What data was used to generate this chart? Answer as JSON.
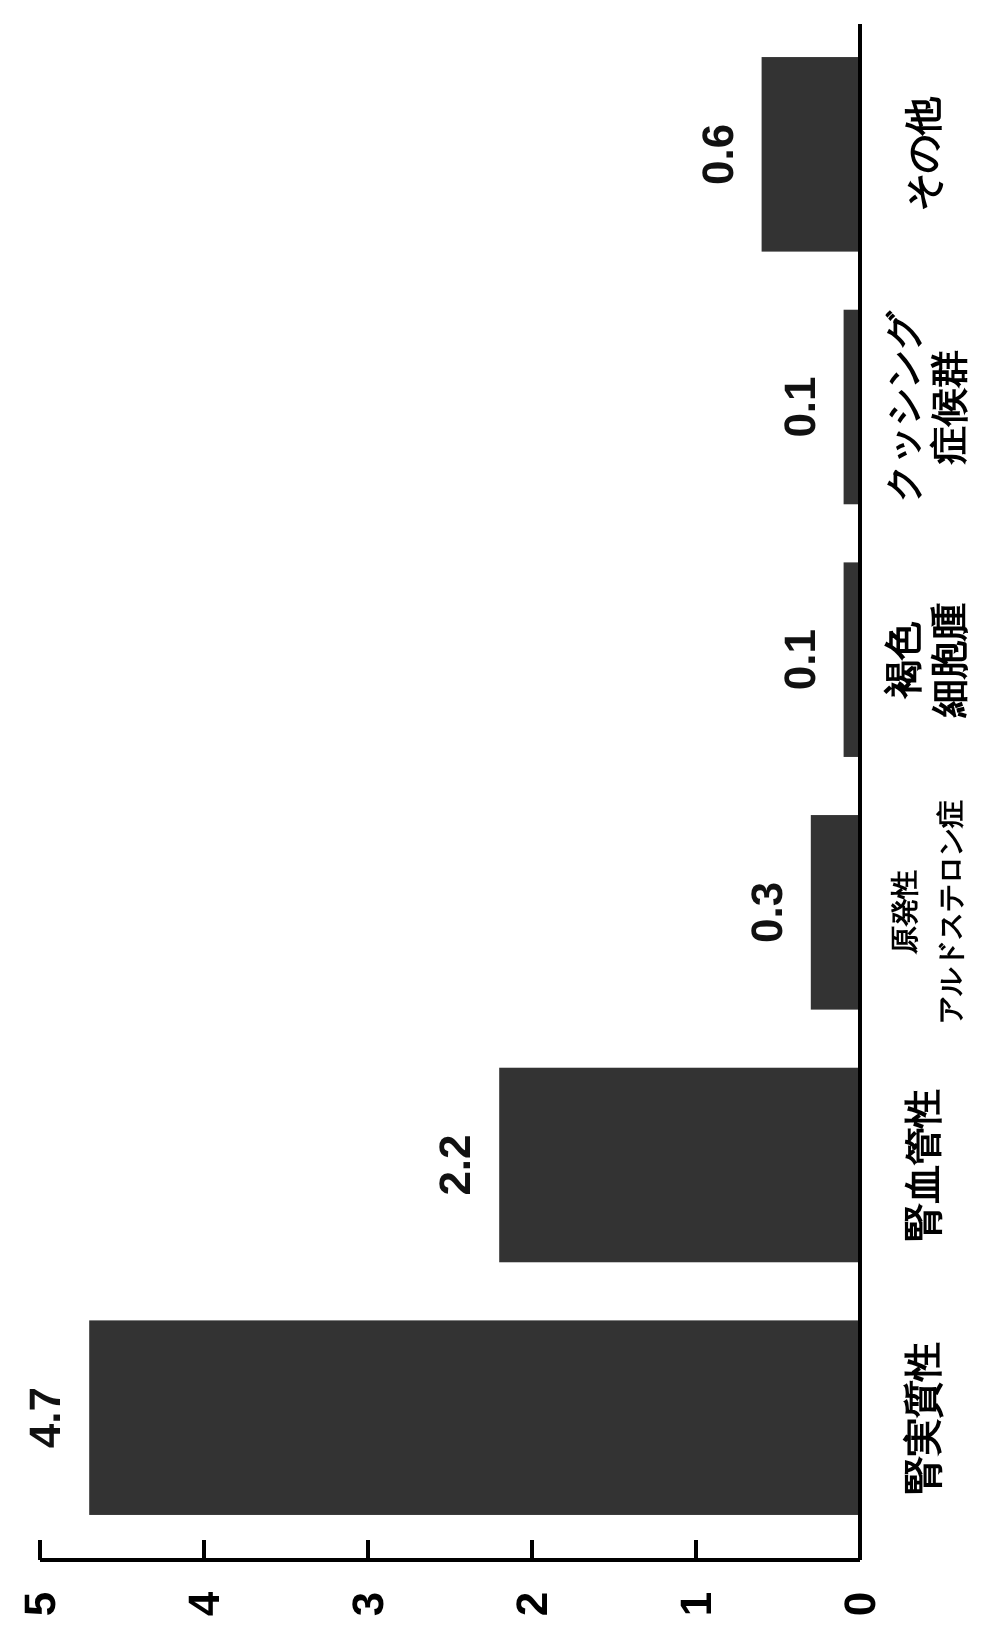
{
  "chart_data": {
    "type": "bar",
    "orientation": "horizontal",
    "categories": [
      "その他",
      "クッシング症候群",
      "褐色細胞腫",
      "原発性アルドステロン症",
      "腎血管性",
      "腎実質性"
    ],
    "values": [
      0.6,
      0.1,
      0.1,
      0.3,
      2.2,
      4.7
    ],
    "color": "#333333",
    "xlim": [
      5,
      0
    ],
    "xticks": [
      5,
      4,
      3,
      2,
      1,
      0
    ],
    "data_labels": true
  }
}
